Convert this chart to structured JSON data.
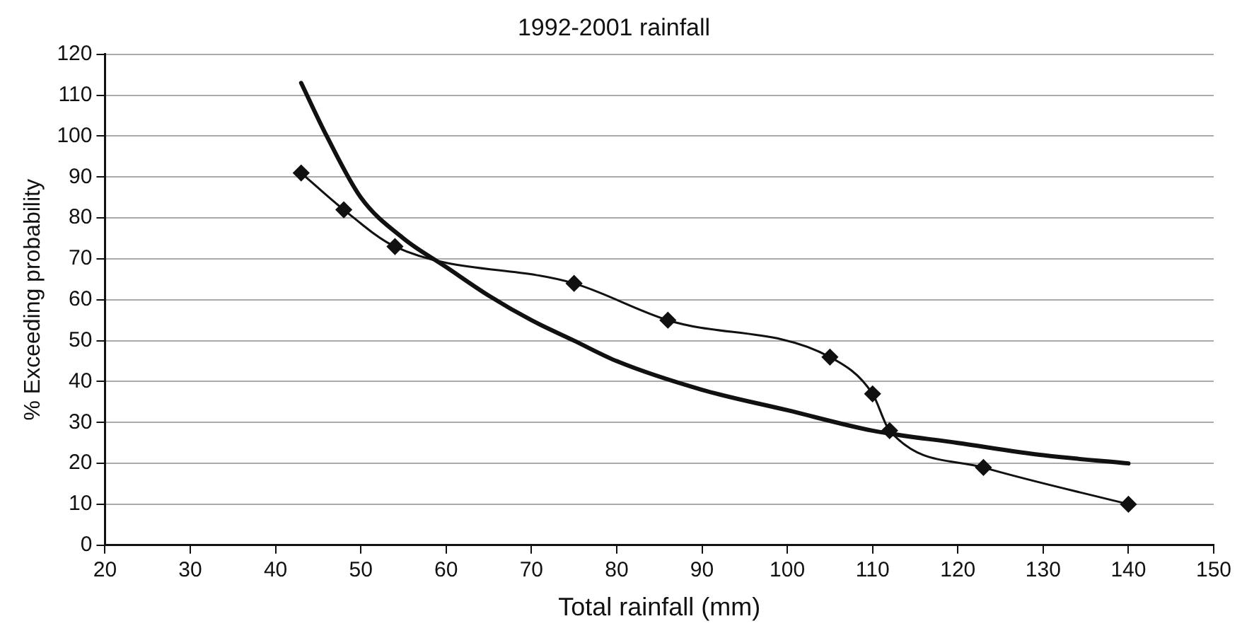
{
  "chart_data": {
    "type": "line",
    "title": "1992-2001 rainfall",
    "xlabel": "Total rainfall (mm)",
    "ylabel": "% Exceeding probability",
    "xlim": [
      20,
      150
    ],
    "xticks": [
      20,
      30,
      40,
      50,
      60,
      70,
      80,
      90,
      100,
      110,
      120,
      130,
      140,
      150
    ],
    "ylim": [
      0,
      120
    ],
    "yticks": [
      0,
      10,
      20,
      30,
      40,
      50,
      60,
      70,
      80,
      90,
      100,
      110,
      120
    ],
    "grid": "y",
    "legend": false,
    "series": [
      {
        "color": "#111111",
        "marker": "diamond",
        "x": [
          43,
          48,
          54,
          75,
          86,
          105,
          110,
          112,
          123,
          140
        ],
        "values": [
          91,
          82,
          73,
          64,
          55,
          46,
          37,
          28,
          19,
          10
        ]
      },
      {
        "color": "#111111",
        "marker": "none",
        "x": [
          43,
          46,
          50,
          55,
          60,
          65,
          70,
          75,
          80,
          90,
          100,
          110,
          120,
          130,
          140
        ],
        "values": [
          113,
          100,
          85,
          75,
          68,
          61,
          55,
          50,
          45,
          38,
          33,
          28,
          25,
          22,
          20
        ]
      }
    ]
  }
}
